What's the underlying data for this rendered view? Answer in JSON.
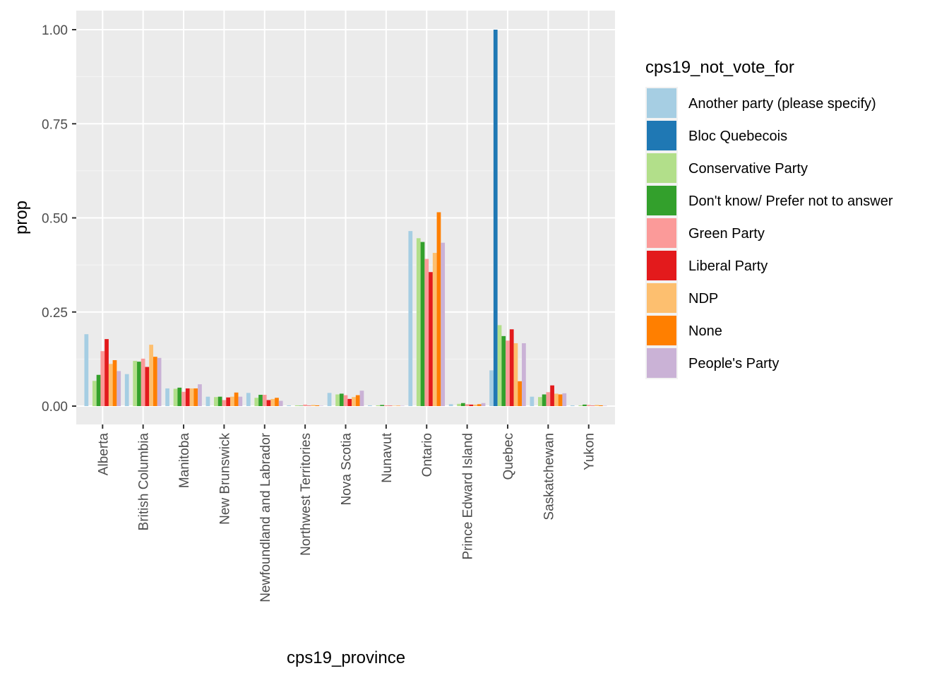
{
  "chart_data": {
    "type": "bar",
    "xlabel": "cps19_province",
    "ylabel": "prop",
    "ylim": [
      -0.05,
      1.05
    ],
    "yticks": [
      0,
      0.25,
      0.5,
      0.75,
      1
    ],
    "ytick_labels": [
      "0.00",
      "0.25",
      "0.50",
      "0.75",
      "1.00"
    ],
    "grid": true,
    "legend_title": "cps19_not_vote_for",
    "legend_position": "right",
    "categories": [
      "Alberta",
      "British Columbia",
      "Manitoba",
      "New Brunswick",
      "Newfoundland and Labrador",
      "Northwest Territories",
      "Nova Scotia",
      "Nunavut",
      "Ontario",
      "Prince Edward Island",
      "Quebec",
      "Saskatchewan",
      "Yukon"
    ],
    "series": [
      {
        "name": "Another party (please specify)",
        "color": "#A6CEE3",
        "values": [
          0.191,
          0.085,
          0.047,
          0.025,
          0.035,
          0.002,
          0.035,
          0.002,
          0.465,
          0.005,
          0.095,
          0.025,
          0.002
        ]
      },
      {
        "name": "Bloc Quebecois",
        "color": "#1F78B4",
        "values": [
          0,
          0,
          0,
          0,
          0,
          0,
          0,
          0,
          0,
          0,
          1.0,
          0,
          0
        ]
      },
      {
        "name": "Conservative Party",
        "color": "#B2DF8A",
        "values": [
          0.067,
          0.12,
          0.046,
          0.024,
          0.022,
          0.002,
          0.031,
          0.002,
          0.446,
          0.006,
          0.215,
          0.024,
          0.002
        ]
      },
      {
        "name": "Don't know/ Prefer not to answer",
        "color": "#33A02C",
        "values": [
          0.083,
          0.118,
          0.049,
          0.025,
          0.03,
          0.001,
          0.033,
          0.003,
          0.436,
          0.008,
          0.186,
          0.031,
          0.004
        ]
      },
      {
        "name": "Green Party",
        "color": "#FB9A99",
        "values": [
          0.146,
          0.126,
          0.038,
          0.016,
          0.03,
          0.004,
          0.029,
          0.002,
          0.391,
          0.005,
          0.174,
          0.037,
          0.003
        ]
      },
      {
        "name": "Liberal Party",
        "color": "#E31A1C",
        "values": [
          0.178,
          0.104,
          0.047,
          0.023,
          0.016,
          0.001,
          0.019,
          0.001,
          0.356,
          0.004,
          0.204,
          0.055,
          0.001
        ]
      },
      {
        "name": "NDP",
        "color": "#FDBF6F",
        "values": [
          0.112,
          0.163,
          0.047,
          0.025,
          0.019,
          0.003,
          0.024,
          0.001,
          0.407,
          0.004,
          0.167,
          0.033,
          0.003
        ]
      },
      {
        "name": "None",
        "color": "#FF7F00",
        "values": [
          0.122,
          0.131,
          0.047,
          0.036,
          0.022,
          0.002,
          0.029,
          0.001,
          0.515,
          0.005,
          0.066,
          0.031,
          0.002
        ]
      },
      {
        "name": "People's Party",
        "color": "#CAB2D6",
        "values": [
          0.093,
          0.128,
          0.058,
          0.025,
          0.014,
          0.001,
          0.041,
          0.001,
          0.434,
          0.008,
          0.167,
          0.034,
          0.001
        ]
      }
    ]
  }
}
